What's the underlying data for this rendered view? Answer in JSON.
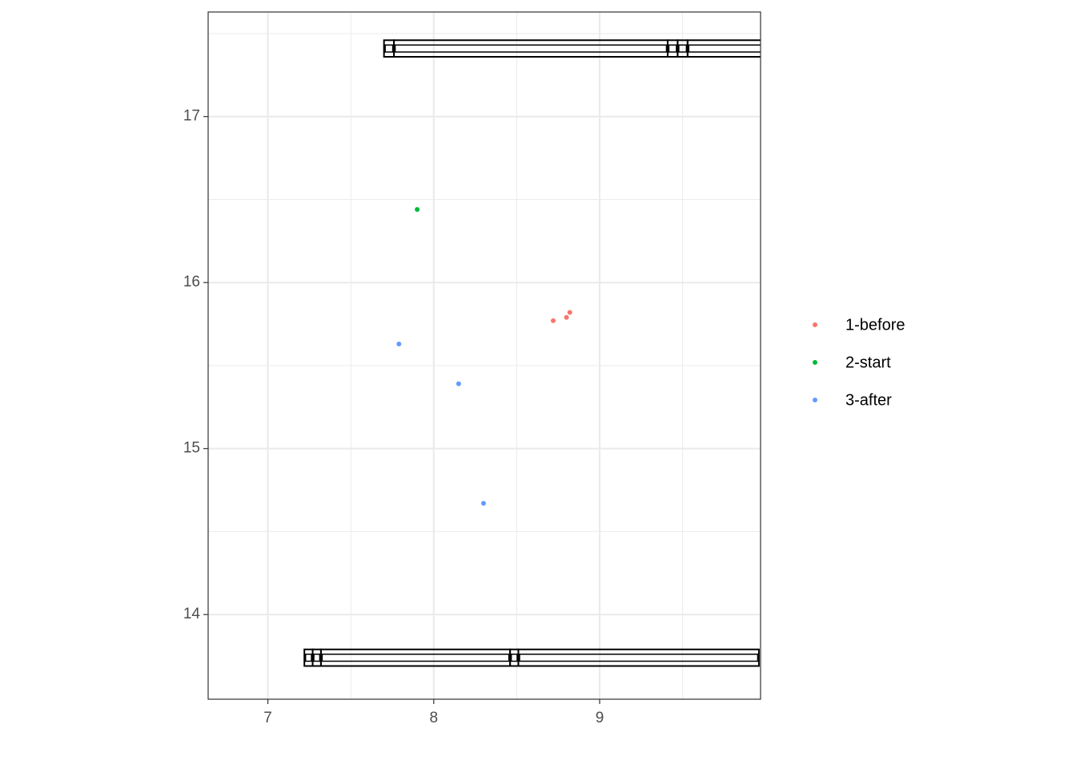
{
  "chart_data": {
    "type": "scatter",
    "xlim": [
      6.64,
      9.97
    ],
    "xticks": [
      7,
      8,
      9
    ],
    "xminor": [
      7.5,
      8.5,
      9.5
    ],
    "ylim": [
      13.49,
      17.63
    ],
    "yticks": [
      14,
      15,
      16,
      17
    ],
    "yminor": [
      14.5,
      15.5,
      16.5,
      17.5
    ],
    "grid": true,
    "legend": "right",
    "series": [
      {
        "name": "1-before",
        "color": "#F8766D",
        "x": [
          8.72,
          8.8,
          8.82
        ],
        "values": [
          15.77,
          15.79,
          15.82
        ]
      },
      {
        "name": "2-start",
        "color": "#00BA38",
        "x": [
          7.9
        ],
        "values": [
          16.44
        ]
      },
      {
        "name": "3-after",
        "color": "#619CFF",
        "x": [
          7.79,
          8.15,
          8.3
        ],
        "values": [
          15.63,
          15.39,
          14.67
        ]
      }
    ],
    "rects": [
      {
        "xmin": 7.7,
        "xmax": 7.76,
        "ymin": 17.36,
        "ymax": 17.46
      },
      {
        "xmin": 7.76,
        "xmax": 9.41,
        "ymin": 17.36,
        "ymax": 17.46
      },
      {
        "xmin": 9.41,
        "xmax": 9.47,
        "ymin": 17.36,
        "ymax": 17.46
      },
      {
        "xmin": 9.47,
        "xmax": 9.53,
        "ymin": 17.36,
        "ymax": 17.46
      },
      {
        "xmin": 9.53,
        "xmax": 10.1,
        "ymin": 17.36,
        "ymax": 17.46
      },
      {
        "xmin": 7.22,
        "xmax": 7.27,
        "ymin": 13.69,
        "ymax": 13.79
      },
      {
        "xmin": 7.27,
        "xmax": 7.32,
        "ymin": 13.69,
        "ymax": 13.79
      },
      {
        "xmin": 7.32,
        "xmax": 8.46,
        "ymin": 13.69,
        "ymax": 13.79
      },
      {
        "xmin": 8.46,
        "xmax": 8.51,
        "ymin": 13.69,
        "ymax": 13.79
      },
      {
        "xmin": 8.51,
        "xmax": 9.96,
        "ymin": 13.69,
        "ymax": 13.79
      }
    ]
  }
}
